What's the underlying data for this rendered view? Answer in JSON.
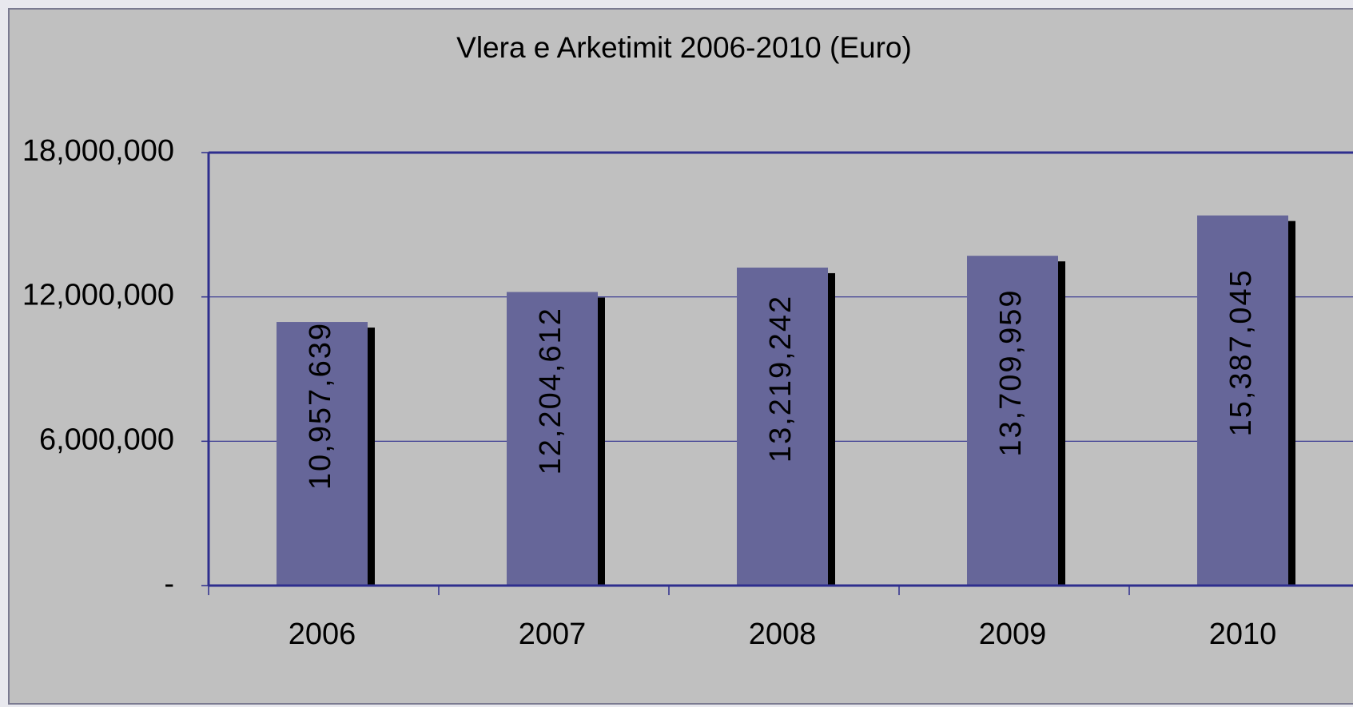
{
  "chart_data": {
    "type": "bar",
    "title": "Vlera e Arketimit 2006-2010 (Euro)",
    "categories": [
      "2006",
      "2007",
      "2008",
      "2009",
      "2010"
    ],
    "values": [
      10957639,
      12204612,
      13219242,
      13709959,
      15387045
    ],
    "value_labels": [
      "10,957,639",
      "12,204,612",
      "13,219,242",
      "13,709,959",
      "15,387,045"
    ],
    "color": "#666699",
    "ylim": [
      0,
      18000000
    ],
    "yticks": [
      {
        "value": 0,
        "label": "-"
      },
      {
        "value": 6000000,
        "label": "6,000,000"
      },
      {
        "value": 12000000,
        "label": "12,000,000"
      },
      {
        "value": 18000000,
        "label": "18,000,000"
      }
    ],
    "grid": true
  }
}
